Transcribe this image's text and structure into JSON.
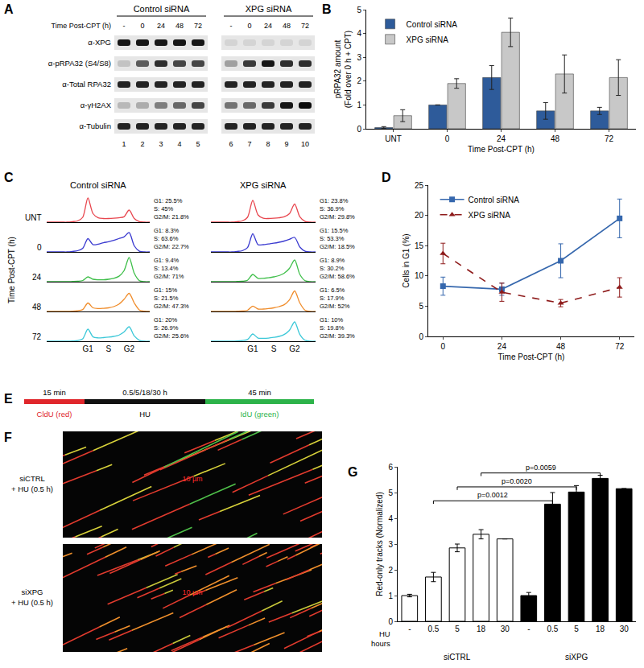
{
  "chart_data": [
    {
      "panel": "B",
      "type": "bar",
      "categories": [
        "UNT",
        "0",
        "24",
        "48",
        "72"
      ],
      "xlabel": "Time Post-CPT (h)",
      "ylabel": [
        "pRPA32 amount",
        "(Fold over 0 h + CPT)"
      ],
      "ylim": [
        0,
        5
      ],
      "yticks": [
        0,
        1,
        2,
        3,
        4,
        5
      ],
      "legend": "top-left",
      "grid": false,
      "series": [
        {
          "name": "Control siRNA",
          "color": "#2e5b9a",
          "values": [
            0.05,
            1,
            2.15,
            0.75,
            0.75
          ],
          "errors": [
            0.04,
            0,
            0.5,
            0.35,
            0.15
          ]
        },
        {
          "name": "XPG siRNA",
          "color": "#c8c8c8",
          "values": [
            0.55,
            1.9,
            4.05,
            2.3,
            2.15
          ],
          "errors": [
            0.25,
            0.2,
            0.6,
            0.8,
            0.75
          ]
        }
      ]
    },
    {
      "panel": "C",
      "type": "line",
      "ylabel": "Time Post-CPT (h)",
      "row_labels": [
        "UNT",
        "0",
        "24",
        "48",
        "72"
      ],
      "colors": [
        "#e8474f",
        "#3b3bd0",
        "#3fbf4a",
        "#f08c2a",
        "#3cc8d8"
      ],
      "x": [
        0,
        5,
        10,
        15,
        20,
        25,
        30,
        35,
        40,
        45,
        50,
        55,
        60,
        65,
        70,
        75,
        80,
        85,
        90,
        95,
        100
      ],
      "xlim": [
        0,
        100
      ],
      "ylim": [
        0,
        1.1
      ],
      "xticks": [
        {
          "value": 40,
          "label": "G1"
        },
        {
          "value": 60,
          "label": "S"
        },
        {
          "value": 80,
          "label": "G2"
        }
      ],
      "tick_labels": "x",
      "columns": [
        {
          "title": "Control siRNA",
          "series": [
            {
              "values": [
                0,
                0,
                0,
                0,
                0,
                0.02,
                0.05,
                0.2,
                1.0,
                0.35,
                0.18,
                0.15,
                0.15,
                0.16,
                0.18,
                0.22,
                0.5,
                0.15,
                0.02,
                0,
                0
              ],
              "phases": [
                "G1: 25.5%",
                "S: 45%",
                "G2/M: 21.8%"
              ]
            },
            {
              "values": [
                0,
                0,
                0,
                0,
                0,
                0.02,
                0.05,
                0.15,
                0.55,
                0.3,
                0.32,
                0.38,
                0.42,
                0.48,
                0.55,
                0.62,
                0.8,
                0.25,
                0.03,
                0,
                0
              ],
              "phases": [
                "G1: 8.3%",
                "S: 63.6%",
                "G2/M: 22.7%"
              ]
            },
            {
              "values": [
                0,
                0,
                0,
                0,
                0,
                0.01,
                0.02,
                0.05,
                0.2,
                0.1,
                0.08,
                0.08,
                0.1,
                0.14,
                0.22,
                0.45,
                1.0,
                0.35,
                0.04,
                0,
                0
              ],
              "phases": [
                "G1: 9.4%",
                "S: 13.4%",
                "G2/M: 71%"
              ]
            },
            {
              "values": [
                0,
                0,
                0,
                0,
                0,
                0.01,
                0.03,
                0.08,
                0.35,
                0.15,
                0.12,
                0.13,
                0.15,
                0.2,
                0.3,
                0.5,
                0.75,
                0.35,
                0.06,
                0.01,
                0
              ],
              "phases": [
                "G1: 15%",
                "S: 21.5%",
                "G2/M: 47.3%"
              ]
            },
            {
              "values": [
                0,
                0,
                0,
                0,
                0,
                0.01,
                0.03,
                0.1,
                0.5,
                0.18,
                0.14,
                0.15,
                0.17,
                0.2,
                0.25,
                0.38,
                0.6,
                0.22,
                0.04,
                0,
                0
              ],
              "phases": [
                "G1: 20%",
                "S: 26.9%",
                "G2/M: 25.6%"
              ]
            }
          ]
        },
        {
          "title": "XPG siRNA",
          "series": [
            {
              "values": [
                0,
                0,
                0,
                0,
                0,
                0.02,
                0.05,
                0.2,
                0.9,
                0.3,
                0.16,
                0.15,
                0.16,
                0.18,
                0.22,
                0.35,
                0.75,
                0.22,
                0.03,
                0,
                0
              ],
              "phases": [
                "G1: 23.8%",
                "S: 36.9%",
                "G2/M: 29.8%"
              ]
            },
            {
              "values": [
                0,
                0,
                0,
                0,
                0,
                0.02,
                0.05,
                0.18,
                0.75,
                0.3,
                0.3,
                0.33,
                0.36,
                0.4,
                0.45,
                0.52,
                0.6,
                0.2,
                0.03,
                0,
                0
              ],
              "phases": [
                "G1: 15.5%",
                "S: 53.3%",
                "G2/M: 18.5%"
              ]
            },
            {
              "values": [
                0,
                0,
                0,
                0,
                0,
                0.01,
                0.02,
                0.06,
                0.3,
                0.14,
                0.14,
                0.16,
                0.2,
                0.25,
                0.35,
                0.55,
                0.9,
                0.3,
                0.04,
                0,
                0
              ],
              "phases": [
                "G1: 8.9%",
                "S: 30.2%",
                "G2/M: 58.6%"
              ]
            },
            {
              "values": [
                0,
                0,
                0,
                0,
                0,
                0.01,
                0.02,
                0.05,
                0.22,
                0.1,
                0.1,
                0.12,
                0.15,
                0.2,
                0.28,
                0.48,
                0.85,
                0.35,
                0.05,
                0,
                0
              ],
              "phases": [
                "G1: 6.5%",
                "S: 17.9%",
                "G2/M: 52%"
              ]
            },
            {
              "values": [
                0,
                0,
                0,
                0,
                0,
                0.01,
                0.03,
                0.07,
                0.3,
                0.13,
                0.12,
                0.13,
                0.16,
                0.2,
                0.28,
                0.45,
                0.8,
                0.28,
                0.04,
                0,
                0
              ],
              "phases": [
                "G1: 10%",
                "S: 19.8%",
                "G2/M: 39.3%"
              ]
            }
          ]
        }
      ]
    },
    {
      "panel": "D",
      "type": "line",
      "x": [
        0,
        24,
        48,
        72
      ],
      "xlim": [
        -6,
        78
      ],
      "xticks": [
        0,
        24,
        48,
        72
      ],
      "ylim": [
        0,
        25
      ],
      "yticks": [
        0,
        5,
        10,
        15,
        20,
        25
      ],
      "xlabel": "Time Post-CPT (h)",
      "ylabel": "Cells in G1 (%)",
      "legend": "top-left",
      "grid": false,
      "series": [
        {
          "name": "Control siRNA",
          "color": "#3567ad",
          "marker": "square",
          "line_style": "solid",
          "values": [
            8.3,
            7.8,
            12.5,
            19.5
          ],
          "errors": [
            1.5,
            1,
            2.8,
            3.2
          ]
        },
        {
          "name": "XPG siRNA",
          "color": "#8e1b1b",
          "marker": "triangle",
          "line_style": "dashed",
          "values": [
            13.7,
            7.3,
            5.5,
            8.1
          ],
          "errors": [
            1.7,
            1.5,
            0.6,
            1.6
          ]
        }
      ]
    },
    {
      "panel": "G",
      "type": "bar",
      "categories": [
        "-",
        "0.5",
        "5",
        "18",
        "30",
        "-",
        "0.5",
        "5",
        "18",
        "30"
      ],
      "values": [
        1,
        1.72,
        2.85,
        3.38,
        3.2,
        1,
        4.55,
        5.02,
        5.55,
        5.15
      ],
      "errors": [
        0.05,
        0.18,
        0.15,
        0.18,
        null,
        0.12,
        0.45,
        0.25,
        0.12,
        null
      ],
      "colors": [
        "#ffffff",
        "#ffffff",
        "#ffffff",
        "#ffffff",
        "#ffffff",
        "#000000",
        "#000000",
        "#000000",
        "#000000",
        "#000000"
      ],
      "groups": [
        {
          "label": "siCTRL",
          "from": 0,
          "to": 4
        },
        {
          "label": "siXPG",
          "from": 5,
          "to": 9
        }
      ],
      "xlabel": [
        "HU",
        "hours"
      ],
      "ylabel": "Red-only tracks (Normalized)",
      "ylim": [
        0,
        6
      ],
      "yticks": [
        0,
        1,
        2,
        3,
        4,
        5,
        6
      ],
      "grid": false,
      "comparisons": [
        {
          "from": 1,
          "to": 6,
          "label": "p=0.0012"
        },
        {
          "from": 2,
          "to": 7,
          "label": "p=0.0020"
        },
        {
          "from": 3,
          "to": 8,
          "label": "p=0.0059"
        }
      ]
    }
  ],
  "blot": {
    "panel": "A",
    "time_label": "Time Post-CPT (h)",
    "groups": [
      {
        "label": "Control siRNA",
        "times": [
          "-",
          "0",
          "24",
          "48",
          "72"
        ]
      },
      {
        "label": "XPG siRNA",
        "times": [
          "-",
          "0",
          "24",
          "48",
          "72"
        ]
      }
    ],
    "lanes": [
      "1",
      "2",
      "3",
      "4",
      "5",
      "6",
      "7",
      "8",
      "9",
      "10"
    ],
    "rows": [
      {
        "label": "α-XPG",
        "intensity": [
          0.9,
          0.9,
          0.9,
          0.9,
          0.9,
          0.08,
          0.08,
          0.08,
          0.08,
          0.08
        ]
      },
      {
        "label": "α-pRPA32 (S4/S8)",
        "intensity": [
          0.15,
          0.6,
          0.8,
          0.7,
          0.7,
          0.3,
          0.75,
          0.9,
          0.8,
          0.8
        ]
      },
      {
        "label": "α-Total RPA32",
        "intensity": [
          0.85,
          0.85,
          0.85,
          0.85,
          0.85,
          0.85,
          0.85,
          0.85,
          0.85,
          0.85
        ]
      },
      {
        "label": "α-γH2AX",
        "intensity": [
          0.2,
          0.25,
          0.45,
          0.55,
          0.7,
          0.5,
          0.55,
          0.75,
          0.9,
          0.95
        ]
      },
      {
        "label": "α-Tubulin",
        "intensity": [
          0.85,
          0.85,
          0.85,
          0.85,
          0.85,
          0.85,
          0.85,
          0.85,
          0.85,
          0.85
        ]
      }
    ]
  },
  "timeline": {
    "panel": "E",
    "segments": [
      {
        "duration": "15 min",
        "label": "CldU (red)",
        "color": "#e0262b"
      },
      {
        "duration": "0.5/5/18/30 h",
        "label": "HU",
        "color": "#111111"
      },
      {
        "duration": "45 min",
        "label": "IdU (green)",
        "color": "#2db34a"
      }
    ]
  },
  "fibers": {
    "panel": "F",
    "scale_label": "10 µm",
    "samples": [
      [
        "siCTRL",
        "+ HU (0.5 h)"
      ],
      [
        "siXPG",
        "+ HU (0.5 h)"
      ]
    ]
  }
}
